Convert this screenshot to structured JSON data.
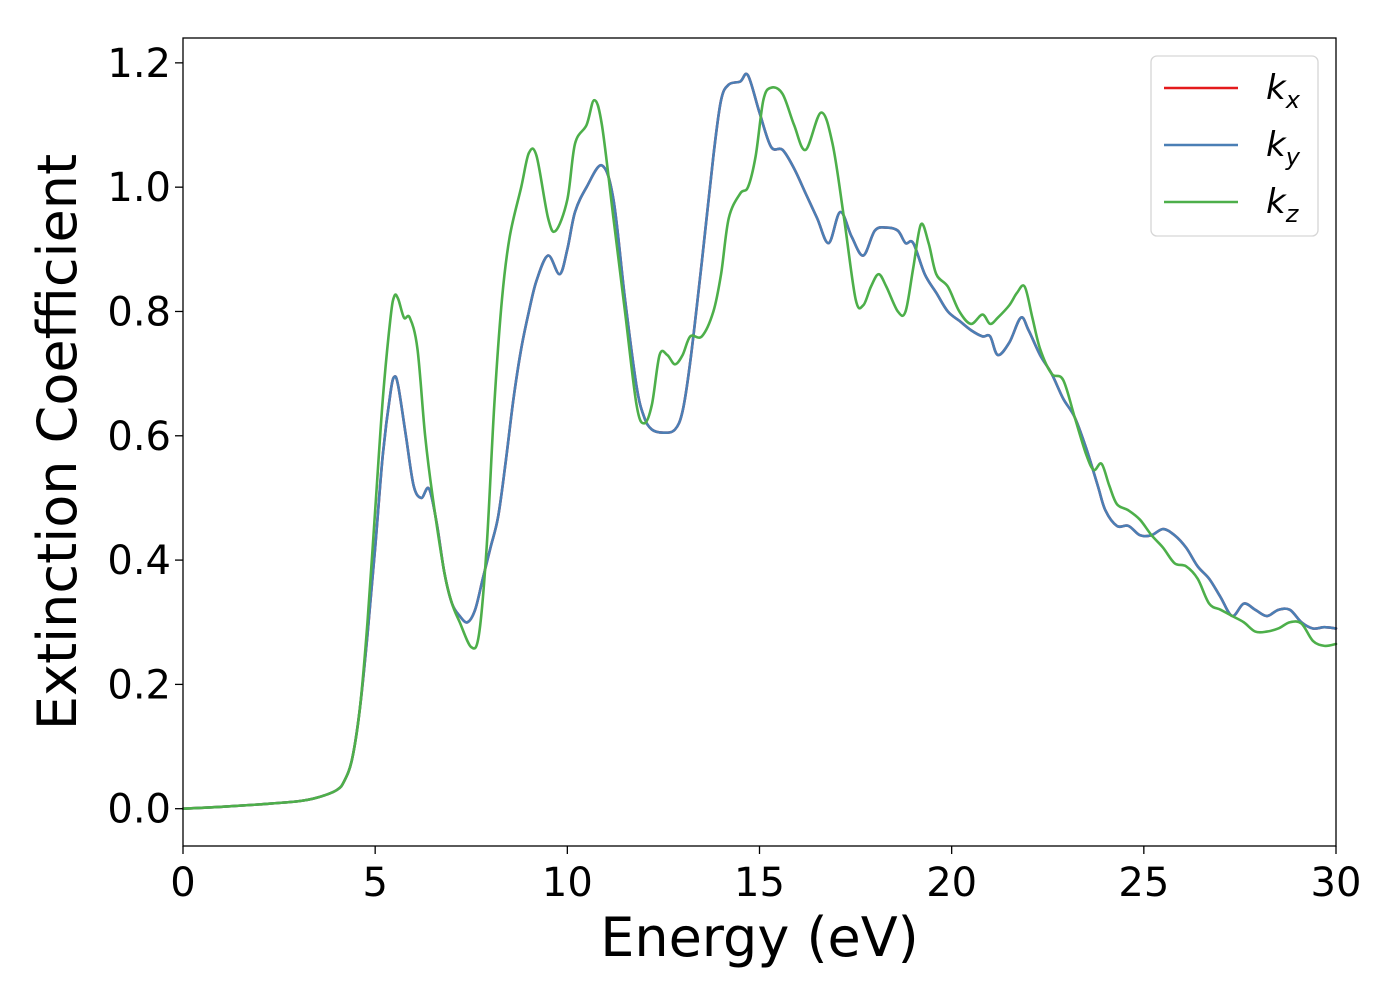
{
  "chart_data": {
    "type": "line",
    "title": "",
    "xlabel": "Energy (eV)",
    "ylabel": "Extinction Coefficient",
    "xlim": [
      0,
      30
    ],
    "ylim": [
      -0.06,
      1.24
    ],
    "xticks": [
      0,
      5,
      10,
      15,
      20,
      25,
      30
    ],
    "yticks": [
      0.0,
      0.2,
      0.4,
      0.6,
      0.8,
      1.0,
      1.2
    ],
    "xtick_labels": [
      "0",
      "5",
      "10",
      "15",
      "20",
      "25",
      "30"
    ],
    "ytick_labels": [
      "0.0",
      "0.2",
      "0.4",
      "0.6",
      "0.8",
      "1.0",
      "1.2"
    ],
    "grid": false,
    "legend": {
      "position": "top-right"
    },
    "series": [
      {
        "name": "k_x",
        "label_main": "k",
        "label_sub": "x",
        "color": "#e41a1c",
        "x": [
          0,
          1,
          2,
          3,
          3.5,
          4,
          4.2,
          4.4,
          4.6,
          4.8,
          5.0,
          5.2,
          5.4,
          5.5,
          5.6,
          5.8,
          6.0,
          6.2,
          6.4,
          6.6,
          6.8,
          7.0,
          7.2,
          7.4,
          7.6,
          7.8,
          8.0,
          8.2,
          8.4,
          8.6,
          8.8,
          9.0,
          9.2,
          9.5,
          9.8,
          10.0,
          10.2,
          10.5,
          10.9,
          11.2,
          11.5,
          11.8,
          12.0,
          12.2,
          12.5,
          12.8,
          13.0,
          13.2,
          13.5,
          13.8,
          14.0,
          14.2,
          14.5,
          14.7,
          15.0,
          15.3,
          15.6,
          15.9,
          16.2,
          16.5,
          16.8,
          17.1,
          17.4,
          17.7,
          18.0,
          18.3,
          18.6,
          18.8,
          19.0,
          19.3,
          19.6,
          19.9,
          20.2,
          20.5,
          20.8,
          21.0,
          21.2,
          21.5,
          21.8,
          22.0,
          22.3,
          22.6,
          22.9,
          23.2,
          23.5,
          23.8,
          24.0,
          24.3,
          24.6,
          24.9,
          25.2,
          25.5,
          25.8,
          26.1,
          26.4,
          26.7,
          27.0,
          27.3,
          27.6,
          27.9,
          28.2,
          28.5,
          28.8,
          29.1,
          29.4,
          29.7,
          30.0
        ],
        "y": [
          0.0,
          0.003,
          0.007,
          0.012,
          0.018,
          0.03,
          0.045,
          0.08,
          0.16,
          0.28,
          0.42,
          0.57,
          0.67,
          0.695,
          0.68,
          0.6,
          0.52,
          0.5,
          0.515,
          0.46,
          0.38,
          0.33,
          0.31,
          0.3,
          0.32,
          0.37,
          0.42,
          0.47,
          0.56,
          0.66,
          0.74,
          0.8,
          0.85,
          0.89,
          0.86,
          0.9,
          0.96,
          1.0,
          1.035,
          0.98,
          0.82,
          0.68,
          0.63,
          0.61,
          0.605,
          0.61,
          0.64,
          0.72,
          0.88,
          1.05,
          1.14,
          1.165,
          1.17,
          1.18,
          1.12,
          1.065,
          1.06,
          1.03,
          0.99,
          0.95,
          0.91,
          0.96,
          0.92,
          0.89,
          0.93,
          0.935,
          0.93,
          0.91,
          0.91,
          0.86,
          0.83,
          0.8,
          0.785,
          0.77,
          0.76,
          0.76,
          0.73,
          0.75,
          0.79,
          0.77,
          0.73,
          0.7,
          0.66,
          0.63,
          0.58,
          0.52,
          0.48,
          0.455,
          0.455,
          0.44,
          0.44,
          0.45,
          0.44,
          0.42,
          0.39,
          0.37,
          0.34,
          0.31,
          0.33,
          0.32,
          0.31,
          0.32,
          0.32,
          0.3,
          0.29,
          0.292,
          0.29
        ]
      },
      {
        "name": "k_y",
        "label_main": "k",
        "label_sub": "y",
        "color": "#4a7fb5",
        "x": [
          0,
          1,
          2,
          3,
          3.5,
          4,
          4.2,
          4.4,
          4.6,
          4.8,
          5.0,
          5.2,
          5.4,
          5.5,
          5.6,
          5.8,
          6.0,
          6.2,
          6.4,
          6.6,
          6.8,
          7.0,
          7.2,
          7.4,
          7.6,
          7.8,
          8.0,
          8.2,
          8.4,
          8.6,
          8.8,
          9.0,
          9.2,
          9.5,
          9.8,
          10.0,
          10.2,
          10.5,
          10.9,
          11.2,
          11.5,
          11.8,
          12.0,
          12.2,
          12.5,
          12.8,
          13.0,
          13.2,
          13.5,
          13.8,
          14.0,
          14.2,
          14.5,
          14.7,
          15.0,
          15.3,
          15.6,
          15.9,
          16.2,
          16.5,
          16.8,
          17.1,
          17.4,
          17.7,
          18.0,
          18.3,
          18.6,
          18.8,
          19.0,
          19.3,
          19.6,
          19.9,
          20.2,
          20.5,
          20.8,
          21.0,
          21.2,
          21.5,
          21.8,
          22.0,
          22.3,
          22.6,
          22.9,
          23.2,
          23.5,
          23.8,
          24.0,
          24.3,
          24.6,
          24.9,
          25.2,
          25.5,
          25.8,
          26.1,
          26.4,
          26.7,
          27.0,
          27.3,
          27.6,
          27.9,
          28.2,
          28.5,
          28.8,
          29.1,
          29.4,
          29.7,
          30.0
        ],
        "y": [
          0.0,
          0.003,
          0.007,
          0.012,
          0.018,
          0.03,
          0.045,
          0.08,
          0.16,
          0.28,
          0.42,
          0.57,
          0.67,
          0.695,
          0.68,
          0.6,
          0.52,
          0.5,
          0.515,
          0.46,
          0.38,
          0.33,
          0.31,
          0.3,
          0.32,
          0.37,
          0.42,
          0.47,
          0.56,
          0.66,
          0.74,
          0.8,
          0.85,
          0.89,
          0.86,
          0.9,
          0.96,
          1.0,
          1.035,
          0.98,
          0.82,
          0.68,
          0.63,
          0.61,
          0.605,
          0.61,
          0.64,
          0.72,
          0.88,
          1.05,
          1.14,
          1.165,
          1.17,
          1.18,
          1.12,
          1.065,
          1.06,
          1.03,
          0.99,
          0.95,
          0.91,
          0.96,
          0.92,
          0.89,
          0.93,
          0.935,
          0.93,
          0.91,
          0.91,
          0.86,
          0.83,
          0.8,
          0.785,
          0.77,
          0.76,
          0.76,
          0.73,
          0.75,
          0.79,
          0.77,
          0.73,
          0.7,
          0.66,
          0.63,
          0.58,
          0.52,
          0.48,
          0.455,
          0.455,
          0.44,
          0.44,
          0.45,
          0.44,
          0.42,
          0.39,
          0.37,
          0.34,
          0.31,
          0.33,
          0.32,
          0.31,
          0.32,
          0.32,
          0.3,
          0.29,
          0.292,
          0.29
        ]
      },
      {
        "name": "k_z",
        "label_main": "k",
        "label_sub": "z",
        "color": "#4daf4a",
        "x": [
          0,
          1,
          2,
          3,
          3.5,
          4,
          4.2,
          4.4,
          4.6,
          4.8,
          5.0,
          5.2,
          5.4,
          5.5,
          5.6,
          5.75,
          5.9,
          6.1,
          6.3,
          6.5,
          6.8,
          7.0,
          7.2,
          7.5,
          7.7,
          7.9,
          8.1,
          8.3,
          8.5,
          8.8,
          9.0,
          9.2,
          9.5,
          9.7,
          10.0,
          10.2,
          10.5,
          10.7,
          10.9,
          11.2,
          11.5,
          11.8,
          12.0,
          12.2,
          12.4,
          12.6,
          12.8,
          13.0,
          13.2,
          13.5,
          13.8,
          14.0,
          14.2,
          14.5,
          14.7,
          14.9,
          15.1,
          15.3,
          15.6,
          15.9,
          16.2,
          16.6,
          16.9,
          17.2,
          17.5,
          17.7,
          17.9,
          18.1,
          18.3,
          18.6,
          18.8,
          19.0,
          19.2,
          19.4,
          19.6,
          19.9,
          20.2,
          20.5,
          20.8,
          21.0,
          21.2,
          21.5,
          21.7,
          21.9,
          22.1,
          22.3,
          22.6,
          22.9,
          23.2,
          23.5,
          23.7,
          23.9,
          24.1,
          24.3,
          24.6,
          24.9,
          25.2,
          25.5,
          25.8,
          26.1,
          26.4,
          26.7,
          27.0,
          27.3,
          27.6,
          27.9,
          28.2,
          28.5,
          28.8,
          29.1,
          29.4,
          29.7,
          30.0
        ],
        "y": [
          0.0,
          0.003,
          0.007,
          0.012,
          0.018,
          0.03,
          0.045,
          0.08,
          0.16,
          0.3,
          0.48,
          0.66,
          0.79,
          0.825,
          0.82,
          0.79,
          0.79,
          0.74,
          0.6,
          0.5,
          0.38,
          0.33,
          0.3,
          0.26,
          0.28,
          0.42,
          0.65,
          0.82,
          0.92,
          1.0,
          1.055,
          1.05,
          0.95,
          0.93,
          0.98,
          1.07,
          1.1,
          1.14,
          1.1,
          0.95,
          0.8,
          0.65,
          0.62,
          0.65,
          0.73,
          0.73,
          0.715,
          0.73,
          0.76,
          0.76,
          0.8,
          0.86,
          0.95,
          0.99,
          1.0,
          1.05,
          1.14,
          1.16,
          1.15,
          1.1,
          1.06,
          1.12,
          1.07,
          0.95,
          0.82,
          0.81,
          0.84,
          0.86,
          0.84,
          0.8,
          0.8,
          0.87,
          0.94,
          0.91,
          0.86,
          0.84,
          0.8,
          0.78,
          0.795,
          0.78,
          0.79,
          0.81,
          0.83,
          0.84,
          0.79,
          0.74,
          0.7,
          0.69,
          0.63,
          0.57,
          0.545,
          0.555,
          0.52,
          0.49,
          0.48,
          0.465,
          0.44,
          0.42,
          0.395,
          0.39,
          0.37,
          0.33,
          0.32,
          0.31,
          0.3,
          0.285,
          0.285,
          0.29,
          0.3,
          0.298,
          0.27,
          0.262,
          0.265
        ]
      }
    ]
  }
}
